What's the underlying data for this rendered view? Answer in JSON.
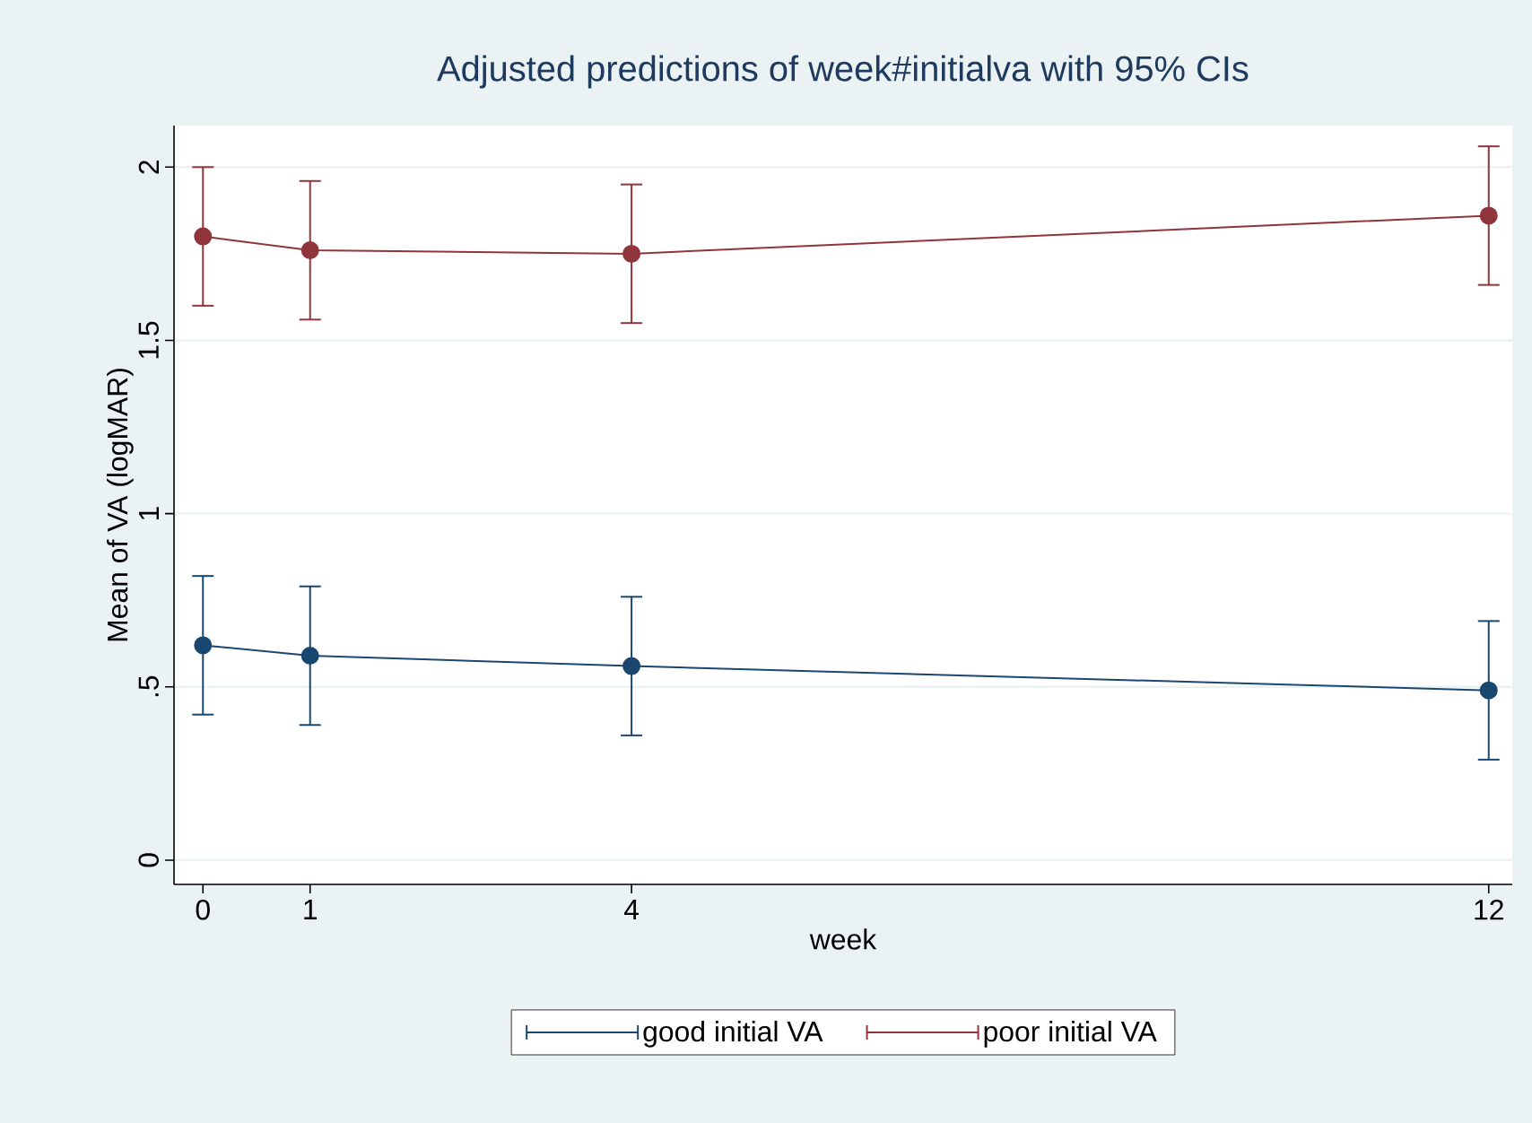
{
  "chart_data": {
    "type": "line",
    "title": "Adjusted predictions of week#initialva with 95% CIs",
    "xlabel": "week",
    "ylabel": "Mean of VA (logMAR)",
    "x": [
      0,
      1,
      4,
      12
    ],
    "series": [
      {
        "name": "good initial VA",
        "color": "#1a476f",
        "values": [
          0.62,
          0.59,
          0.56,
          0.49
        ],
        "errors": [
          0.2,
          0.2,
          0.2,
          0.2
        ]
      },
      {
        "name": "poor initial VA",
        "color": "#90353b",
        "values": [
          1.8,
          1.76,
          1.75,
          1.86
        ],
        "errors": [
          0.2,
          0.2,
          0.2,
          0.2
        ]
      }
    ],
    "xlim": [
      -0.27,
      12.22
    ],
    "ylim": [
      -0.07,
      2.12
    ],
    "xticks": [
      0,
      1,
      4,
      12
    ],
    "yticks": [
      0,
      {
        "value": 0.5,
        "label": ".5"
      },
      1,
      1.5,
      2
    ],
    "grid": "y",
    "legend": "bottom",
    "marker": "circle",
    "line_style": "solid"
  }
}
